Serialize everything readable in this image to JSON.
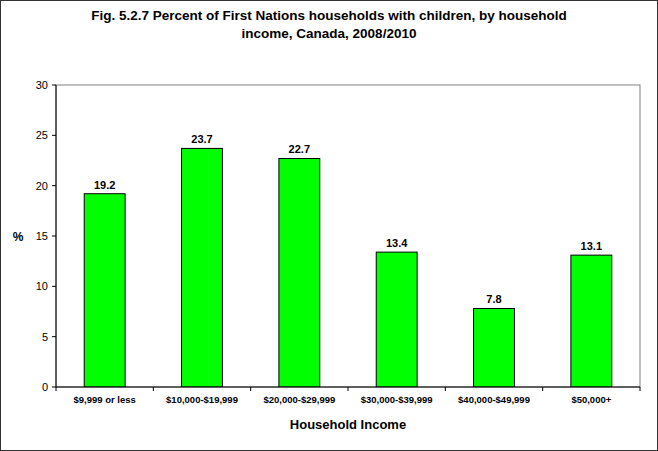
{
  "chart_data": {
    "type": "bar",
    "title": "Fig. 5.2.7 Percent of First Nations households with children, by household income, Canada, 2008/2010",
    "x_label": "Household Income",
    "y_label": "%",
    "categories": [
      "$9,999 or less",
      "$10,000-$19,999",
      "$20,000-$29,999",
      "$30,000-$39,999",
      "$40,000-$49,999",
      "$50,000+"
    ],
    "values": [
      19.2,
      23.7,
      22.7,
      13.4,
      7.8,
      13.1
    ],
    "color": "#00ff00",
    "ylim": [
      0,
      30
    ],
    "yticks": [
      0,
      5,
      10,
      15,
      20,
      25,
      30
    ],
    "grid": false,
    "data_labels": true
  }
}
